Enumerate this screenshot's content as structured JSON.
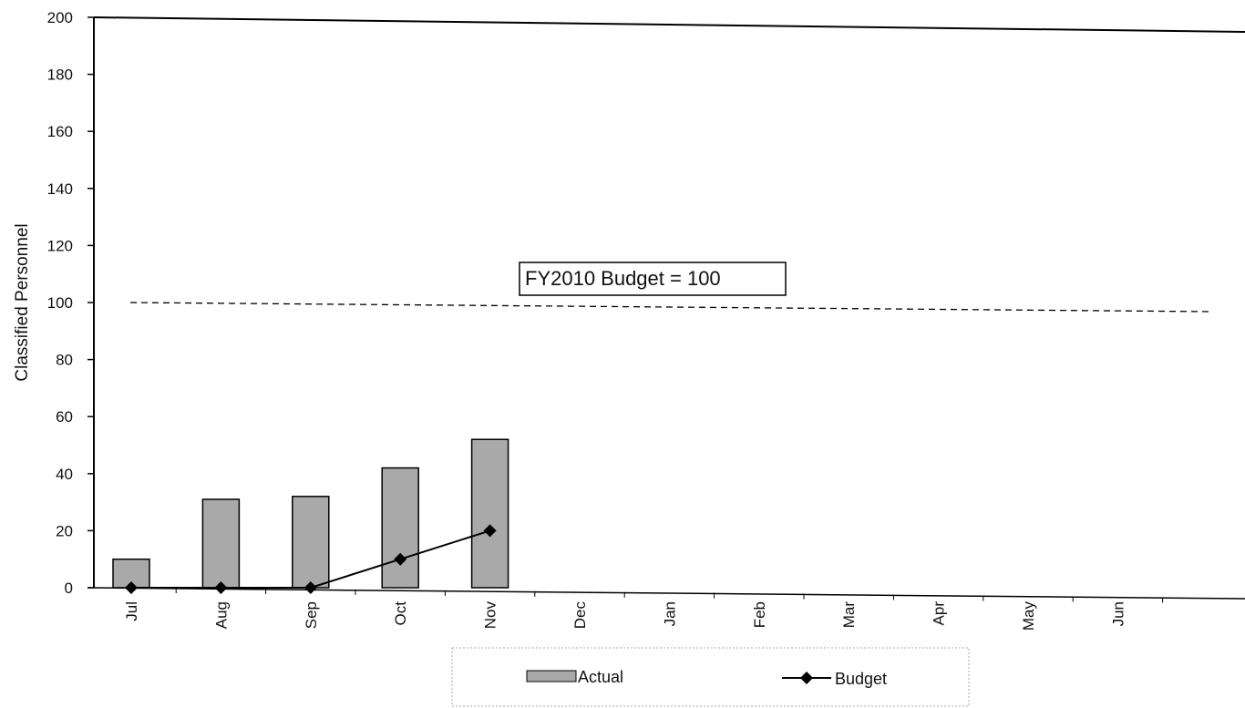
{
  "chart_data": {
    "type": "bar",
    "title": "",
    "xlabel": "",
    "ylabel": "Classified Personnel",
    "ylim": [
      0,
      200
    ],
    "yticks": [
      0,
      20,
      40,
      60,
      80,
      100,
      120,
      140,
      160,
      180,
      200
    ],
    "categories": [
      "Jul",
      "Aug",
      "Sep",
      "Oct",
      "Nov",
      "Dec",
      "Jan",
      "Feb",
      "Mar",
      "Apr",
      "May",
      "Jun"
    ],
    "series": [
      {
        "name": "Actual",
        "kind": "bar",
        "color": "#a9a9a9",
        "values": [
          10,
          31,
          32,
          42,
          52,
          null,
          null,
          null,
          null,
          null,
          null,
          null
        ]
      },
      {
        "name": "Budget",
        "kind": "line",
        "marker": "diamond",
        "color": "#000000",
        "values": [
          0,
          0,
          0,
          10,
          20,
          null,
          null,
          null,
          null,
          null,
          null,
          null
        ]
      }
    ],
    "reference_line": {
      "value": 100,
      "style": "dashed",
      "label": "FY2010 Budget = 100"
    },
    "legend": {
      "placement": "bottom-center"
    },
    "grid": false
  }
}
